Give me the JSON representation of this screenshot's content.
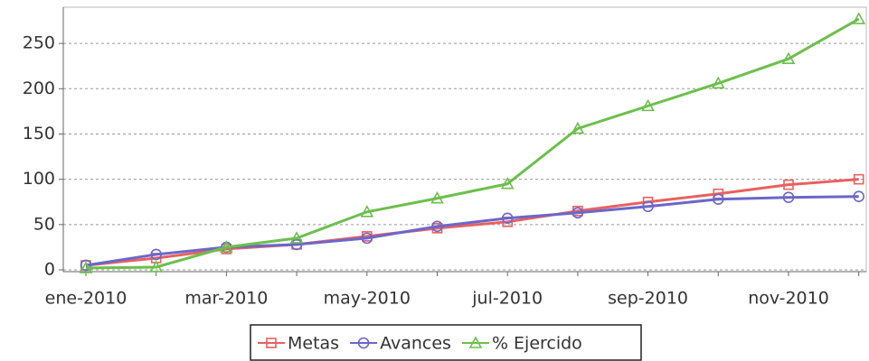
{
  "chart_data": {
    "type": "line",
    "categories": [
      "ene-2010",
      null,
      "mar-2010",
      null,
      "may-2010",
      null,
      "jul-2010",
      null,
      "sep-2010",
      null,
      "nov-2010",
      null
    ],
    "series": [
      {
        "name": "Metas",
        "color": "#e8615f",
        "marker": "square",
        "values": [
          5,
          13,
          23,
          28,
          37,
          46,
          53,
          65,
          75,
          84,
          94,
          100
        ]
      },
      {
        "name": "Avances",
        "color": "#6a67c9",
        "marker": "circle",
        "values": [
          5,
          17,
          25,
          28,
          35,
          48,
          57,
          63,
          70,
          78,
          80,
          81
        ]
      },
      {
        "name": "% Ejercido",
        "color": "#6cbf4c",
        "marker": "triangle",
        "values": [
          2,
          3,
          25,
          35,
          64,
          79,
          95,
          156,
          181,
          206,
          233,
          277
        ]
      }
    ],
    "ylim": [
      -2,
      290
    ],
    "yticks": [
      0,
      50,
      100,
      150,
      200,
      250
    ],
    "grid": true,
    "legend": "bottom"
  }
}
